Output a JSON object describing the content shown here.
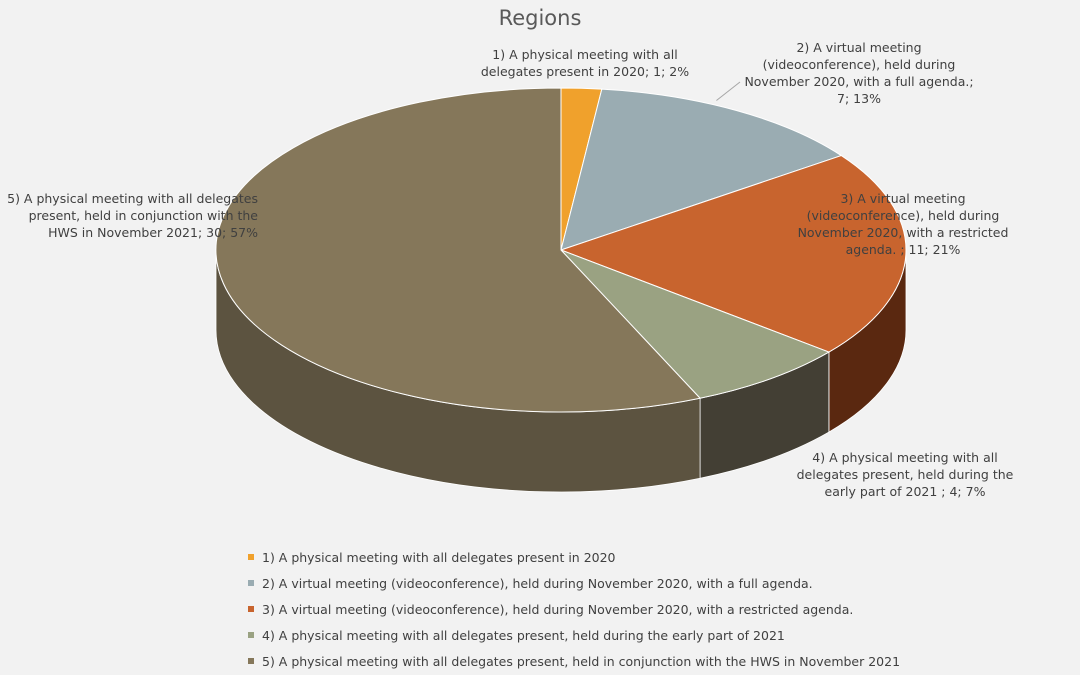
{
  "chart_data": {
    "type": "pie",
    "title": "Regions",
    "categories": [
      "1) A physical meeting with all delegates present in 2020",
      "2) A virtual meeting (videoconference), held during November 2020, with a full agenda.",
      "3) A virtual meeting (videoconference), held during November 2020, with a restricted agenda.",
      "4) A physical meeting with all delegates present, held during the early part of 2021",
      "5) A physical meeting with all delegates present, held in conjunction with the HWS in November 2021"
    ],
    "values": [
      1,
      7,
      11,
      4,
      30
    ],
    "percentages": [
      "2%",
      "13%",
      "21%",
      "7%",
      "57%"
    ],
    "colors": [
      "#f0a12c",
      "#9aacb2",
      "#c8642e",
      "#9aa282",
      "#85775a"
    ],
    "side_colors": [
      "#a86d1c",
      "#6b7a80",
      "#5a2810",
      "#433f34",
      "#5c5340"
    ],
    "data_labels": [
      "1) A physical meeting with all delegates present in 2020; 1; 2%",
      "2) A virtual meeting (videoconference), held during November 2020, with a full agenda.; 7; 13%",
      "3) A virtual meeting (videoconference), held during November 2020, with a restricted agenda. ; 11; 21%",
      "4) A physical meeting with all delegates present, held during the early part of 2021 ; 4; 7%",
      "5) A physical meeting with all delegates present, held in conjunction with the HWS in November 2021; 30; 57%"
    ],
    "legend_position": "bottom",
    "style": "3d"
  }
}
